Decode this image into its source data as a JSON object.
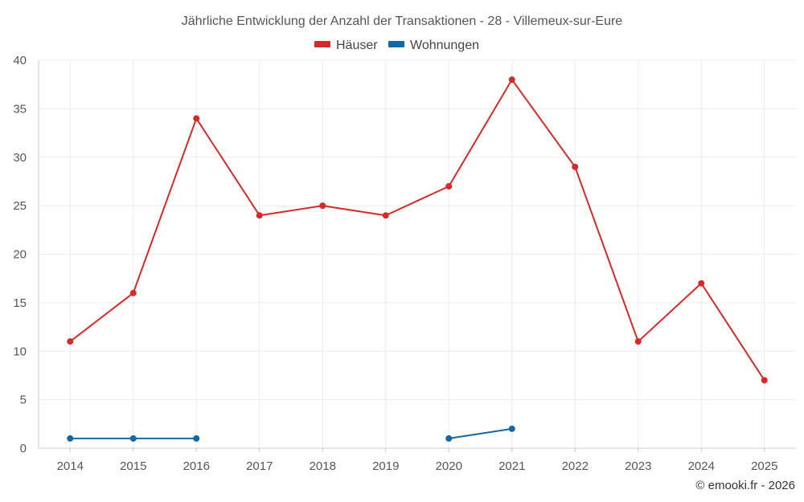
{
  "chart_data": {
    "type": "line",
    "title": "Jährliche Entwicklung der Anzahl der Transaktionen - 28 - Villemeux-sur-Eure",
    "categories": [
      "2014",
      "2015",
      "2016",
      "2017",
      "2018",
      "2019",
      "2020",
      "2021",
      "2022",
      "2023",
      "2024",
      "2025"
    ],
    "series": [
      {
        "name": "Häuser",
        "color": "#d42a2a",
        "values": [
          11,
          16,
          34,
          24,
          25,
          24,
          27,
          38,
          29,
          11,
          17,
          7
        ]
      },
      {
        "name": "Wohnungen",
        "color": "#1467a0",
        "values": [
          1,
          1,
          1,
          null,
          null,
          null,
          1,
          2,
          null,
          null,
          null,
          null
        ]
      }
    ],
    "ylim": [
      0,
      40
    ],
    "yticks": [
      0,
      5,
      10,
      15,
      20,
      25,
      30,
      35,
      40
    ],
    "xlabel": "",
    "ylabel": "",
    "grid": true,
    "legend_position": "top-center"
  },
  "credit": "© emooki.fr - 2026"
}
